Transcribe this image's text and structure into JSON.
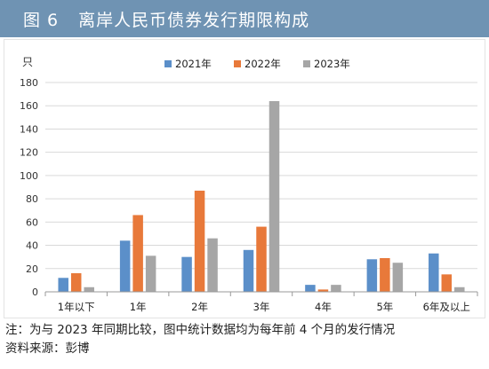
{
  "header": {
    "figure_no": "图 6",
    "title": "离岸人民币债券发行期限构成"
  },
  "chart_data": {
    "type": "bar",
    "ylabel": "只",
    "ylim": [
      0,
      180
    ],
    "yticks": [
      0,
      20,
      40,
      60,
      80,
      100,
      120,
      140,
      160,
      180
    ],
    "categories": [
      "1年以下",
      "1年",
      "2年",
      "3年",
      "4年",
      "5年",
      "6年及以上"
    ],
    "series": [
      {
        "name": "2021年",
        "color": "#5b8fc9",
        "values": [
          12,
          44,
          30,
          36,
          6,
          28,
          33
        ]
      },
      {
        "name": "2022年",
        "color": "#e8793a",
        "values": [
          16,
          66,
          87,
          56,
          2,
          29,
          15
        ]
      },
      {
        "name": "2023年",
        "color": "#a6a6a6",
        "values": [
          4,
          31,
          46,
          164,
          6,
          25,
          4
        ]
      }
    ],
    "grid": true,
    "legend_position": "top-center"
  },
  "notes": {
    "note": "注：为与 2023 年同期比较，图中统计数据均为每年前 4 个月的发行情况",
    "source": "资料来源：彭博"
  }
}
